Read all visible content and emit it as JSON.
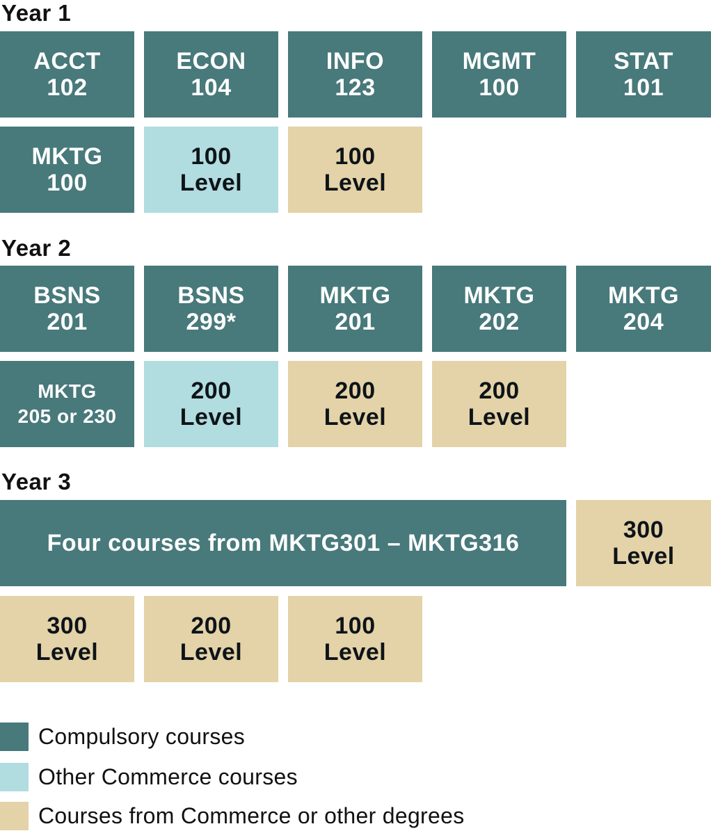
{
  "colors": {
    "compulsory": "#48797b",
    "other_commerce": "#b1dce0",
    "commerce_or_other": "#e4d2a8"
  },
  "years": [
    {
      "heading": "Year 1",
      "rows": [
        [
          {
            "line1": "ACCT",
            "line2": "102",
            "kind": "compulsory"
          },
          {
            "line1": "ECON",
            "line2": "104",
            "kind": "compulsory"
          },
          {
            "line1": "INFO",
            "line2": "123",
            "kind": "compulsory"
          },
          {
            "line1": "MGMT",
            "line2": "100",
            "kind": "compulsory"
          },
          {
            "line1": "STAT",
            "line2": "101",
            "kind": "compulsory"
          }
        ],
        [
          {
            "line1": "MKTG",
            "line2": "100",
            "kind": "compulsory"
          },
          {
            "line1": "100",
            "line2": "Level",
            "kind": "other_commerce"
          },
          {
            "line1": "100",
            "line2": "Level",
            "kind": "commerce_or_other"
          }
        ]
      ]
    },
    {
      "heading": "Year 2",
      "rows": [
        [
          {
            "line1": "BSNS",
            "line2": "201",
            "kind": "compulsory"
          },
          {
            "line1": "BSNS",
            "line2": "299*",
            "kind": "compulsory"
          },
          {
            "line1": "MKTG",
            "line2": "201",
            "kind": "compulsory"
          },
          {
            "line1": "MKTG",
            "line2": "202",
            "kind": "compulsory"
          },
          {
            "line1": "MKTG",
            "line2": "204",
            "kind": "compulsory"
          }
        ],
        [
          {
            "line1": "MKTG",
            "line2": "205 or 230",
            "kind": "compulsory"
          },
          {
            "line1": "200",
            "line2": "Level",
            "kind": "other_commerce"
          },
          {
            "line1": "200",
            "line2": "Level",
            "kind": "commerce_or_other"
          },
          {
            "line1": "200",
            "line2": "Level",
            "kind": "commerce_or_other"
          }
        ]
      ]
    },
    {
      "heading": "Year 3",
      "rows": [
        [
          {
            "line1": "Four courses from MKTG301 – MKTG316",
            "kind": "compulsory"
          },
          {
            "line1": "300",
            "line2": "Level",
            "kind": "commerce_or_other"
          }
        ],
        [
          {
            "line1": "300",
            "line2": "Level",
            "kind": "commerce_or_other"
          },
          {
            "line1": "200",
            "line2": "Level",
            "kind": "commerce_or_other"
          },
          {
            "line1": "100",
            "line2": "Level",
            "kind": "commerce_or_other"
          }
        ]
      ]
    }
  ],
  "legend": [
    {
      "label": "Compulsory courses",
      "kind": "compulsory"
    },
    {
      "label": "Other Commerce courses",
      "kind": "other_commerce"
    },
    {
      "label": "Courses from Commerce or other degrees",
      "kind": "commerce_or_other"
    }
  ]
}
